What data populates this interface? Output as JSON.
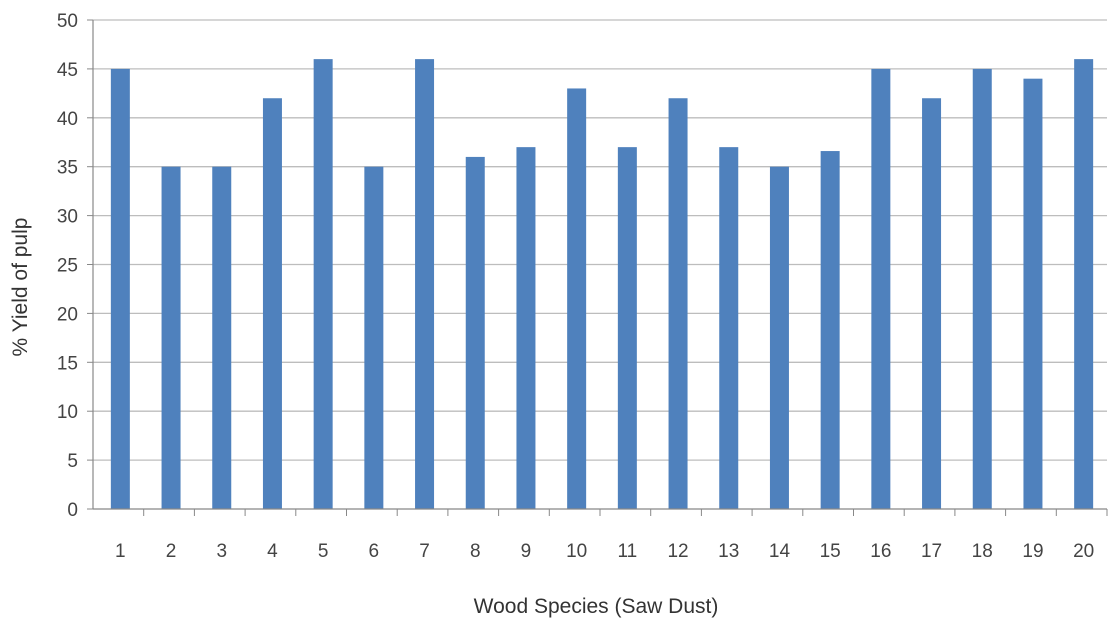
{
  "chart_data": {
    "type": "bar",
    "title": "",
    "xlabel": "Wood Species (Saw Dust)",
    "ylabel": "% Yield of pulp",
    "categories": [
      "1",
      "2",
      "3",
      "4",
      "5",
      "6",
      "7",
      "8",
      "9",
      "10",
      "11",
      "12",
      "13",
      "14",
      "15",
      "16",
      "17",
      "18",
      "19",
      "20"
    ],
    "values": [
      45,
      35,
      35,
      42,
      46,
      35,
      46,
      36,
      37,
      43,
      37,
      42,
      37,
      35,
      36.6,
      45,
      42,
      45,
      44,
      46
    ],
    "ylim": [
      0,
      50
    ],
    "yticks": [
      "0",
      "5",
      "10",
      "15",
      "20",
      "25",
      "30",
      "35",
      "40",
      "45",
      "50"
    ],
    "grid": true,
    "legend": "none",
    "colors": {
      "bar": "#4f81bd",
      "grid": "#bdbdbd",
      "axis": "#888888"
    }
  }
}
